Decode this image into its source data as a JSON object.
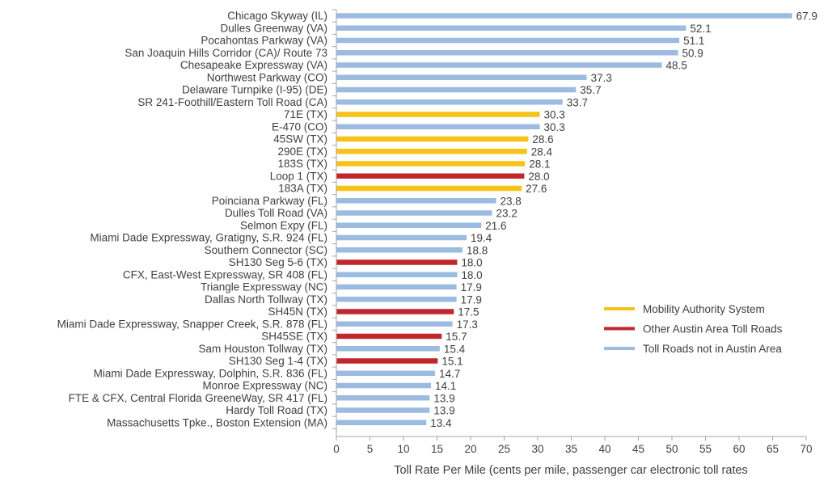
{
  "chart_data": {
    "type": "bar",
    "orientation": "horizontal",
    "xlabel": "Toll Rate Per Mile (cents per mile, passenger car electronic toll rates",
    "xlim": [
      0,
      70
    ],
    "xticks": [
      0,
      5,
      10,
      15,
      20,
      25,
      30,
      35,
      40,
      45,
      50,
      55,
      60,
      65,
      70
    ],
    "grid": false,
    "legend_position": "bottom-right",
    "colors": {
      "mobility": "#f5c318",
      "other_austin": "#c0272d",
      "not_austin": "#9bbbe0"
    },
    "legend": [
      {
        "group": "mobility",
        "label": "Mobility Authority System"
      },
      {
        "group": "other_austin",
        "label": "Other Austin Area Toll Roads"
      },
      {
        "group": "not_austin",
        "label": "Toll Roads not in Austin Area"
      }
    ],
    "bars": [
      {
        "category": "Chicago Skyway (IL)",
        "value": 67.9,
        "value_label": "67.9",
        "group": "not_austin"
      },
      {
        "category": "Dulles Greenway (VA)",
        "value": 52.1,
        "value_label": "52.1",
        "group": "not_austin"
      },
      {
        "category": "Pocahontas Parkway (VA)",
        "value": 51.1,
        "value_label": "51.1",
        "group": "not_austin"
      },
      {
        "category": "San Joaquin Hills Corridor (CA)/ Route 73",
        "value": 50.9,
        "value_label": "50.9",
        "group": "not_austin"
      },
      {
        "category": "Chesapeake Expressway (VA)",
        "value": 48.5,
        "value_label": "48.5",
        "group": "not_austin"
      },
      {
        "category": "Northwest Parkway (CO)",
        "value": 37.3,
        "value_label": "37.3",
        "group": "not_austin"
      },
      {
        "category": "Delaware Turnpike (I-95) (DE)",
        "value": 35.7,
        "value_label": "35.7",
        "group": "not_austin"
      },
      {
        "category": "SR 241-Foothill/Eastern Toll Road (CA)",
        "value": 33.7,
        "value_label": "33.7",
        "group": "not_austin"
      },
      {
        "category": "71E (TX)",
        "value": 30.3,
        "value_label": "30.3",
        "group": "mobility"
      },
      {
        "category": "E-470 (CO)",
        "value": 30.3,
        "value_label": "30.3",
        "group": "not_austin"
      },
      {
        "category": "45SW (TX)",
        "value": 28.6,
        "value_label": "28.6",
        "group": "mobility"
      },
      {
        "category": "290E (TX)",
        "value": 28.4,
        "value_label": "28.4",
        "group": "mobility"
      },
      {
        "category": "183S (TX)",
        "value": 28.1,
        "value_label": "28.1",
        "group": "mobility"
      },
      {
        "category": "Loop 1 (TX)",
        "value": 28.0,
        "value_label": "28.0",
        "group": "other_austin"
      },
      {
        "category": "183A (TX)",
        "value": 27.6,
        "value_label": "27.6",
        "group": "mobility"
      },
      {
        "category": "Poinciana Parkway (FL)",
        "value": 23.8,
        "value_label": "23.8",
        "group": "not_austin"
      },
      {
        "category": "Dulles Toll Road (VA)",
        "value": 23.2,
        "value_label": "23.2",
        "group": "not_austin"
      },
      {
        "category": "Selmon Expy (FL)",
        "value": 21.6,
        "value_label": "21.6",
        "group": "not_austin"
      },
      {
        "category": "Miami Dade Expressway, Gratigny, S.R. 924 (FL)",
        "value": 19.4,
        "value_label": "19.4",
        "group": "not_austin"
      },
      {
        "category": "Southern Connector (SC)",
        "value": 18.8,
        "value_label": "18.8",
        "group": "not_austin"
      },
      {
        "category": "SH130 Seg 5-6 (TX)",
        "value": 18.0,
        "value_label": "18.0",
        "group": "other_austin"
      },
      {
        "category": "CFX, East-West Expressway, SR 408 (FL)",
        "value": 18.0,
        "value_label": "18.0",
        "group": "not_austin"
      },
      {
        "category": "Triangle Expressway (NC)",
        "value": 17.9,
        "value_label": "17.9",
        "group": "not_austin"
      },
      {
        "category": "Dallas North Tollway (TX)",
        "value": 17.9,
        "value_label": "17.9",
        "group": "not_austin"
      },
      {
        "category": "SH45N (TX)",
        "value": 17.5,
        "value_label": "17.5",
        "group": "other_austin"
      },
      {
        "category": "Miami Dade Expressway, Snapper Creek, S.R. 878 (FL)",
        "value": 17.3,
        "value_label": "17.3",
        "group": "not_austin"
      },
      {
        "category": "SH45SE (TX)",
        "value": 15.7,
        "value_label": "15.7",
        "group": "other_austin"
      },
      {
        "category": "Sam Houston Tollway (TX)",
        "value": 15.4,
        "value_label": "15.4",
        "group": "not_austin"
      },
      {
        "category": "SH130 Seg 1-4 (TX)",
        "value": 15.1,
        "value_label": "15.1",
        "group": "other_austin"
      },
      {
        "category": "Miami Dade Expressway, Dolphin, S.R. 836 (FL)",
        "value": 14.7,
        "value_label": "14.7",
        "group": "not_austin"
      },
      {
        "category": "Monroe Expressway (NC)",
        "value": 14.1,
        "value_label": "14.1",
        "group": "not_austin"
      },
      {
        "category": "FTE & CFX, Central Florida GreeneWay, SR 417 (FL)",
        "value": 13.9,
        "value_label": "13.9",
        "group": "not_austin"
      },
      {
        "category": "Hardy Toll Road (TX)",
        "value": 13.9,
        "value_label": "13.9",
        "group": "not_austin"
      },
      {
        "category": "Massachusetts Tpke., Boston Extension (MA)",
        "value": 13.4,
        "value_label": "13.4",
        "group": "not_austin"
      }
    ]
  }
}
